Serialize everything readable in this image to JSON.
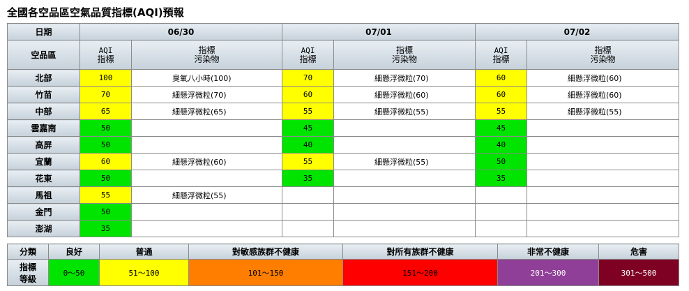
{
  "title": "全國各空品區空氣品質指標(AQI)預報",
  "header": {
    "date_label": "日期",
    "area_label": "空品區",
    "aqi_label_1": "AQI",
    "aqi_label_2": "指標",
    "pol_label_1": "指標",
    "pol_label_2": "污染物",
    "dates": [
      "06/30",
      "07/01",
      "07/02"
    ]
  },
  "rows": [
    {
      "area": "北部",
      "d": [
        {
          "aqi": "100",
          "pol": "臭氧八小時(100)",
          "color": "#ffff00"
        },
        {
          "aqi": "70",
          "pol": "細懸浮微粒(70)",
          "color": "#ffff00"
        },
        {
          "aqi": "60",
          "pol": "細懸浮微粒(60)",
          "color": "#ffff00"
        }
      ]
    },
    {
      "area": "竹苗",
      "d": [
        {
          "aqi": "70",
          "pol": "細懸浮微粒(70)",
          "color": "#ffff00"
        },
        {
          "aqi": "60",
          "pol": "細懸浮微粒(60)",
          "color": "#ffff00"
        },
        {
          "aqi": "60",
          "pol": "細懸浮微粒(60)",
          "color": "#ffff00"
        }
      ]
    },
    {
      "area": "中部",
      "d": [
        {
          "aqi": "65",
          "pol": "細懸浮微粒(65)",
          "color": "#ffff00"
        },
        {
          "aqi": "55",
          "pol": "細懸浮微粒(55)",
          "color": "#ffff00"
        },
        {
          "aqi": "55",
          "pol": "細懸浮微粒(55)",
          "color": "#ffff00"
        }
      ]
    },
    {
      "area": "雲嘉南",
      "d": [
        {
          "aqi": "50",
          "pol": "",
          "color": "#00e400"
        },
        {
          "aqi": "45",
          "pol": "",
          "color": "#00e400"
        },
        {
          "aqi": "45",
          "pol": "",
          "color": "#00e400"
        }
      ]
    },
    {
      "area": "高屏",
      "d": [
        {
          "aqi": "50",
          "pol": "",
          "color": "#00e400"
        },
        {
          "aqi": "40",
          "pol": "",
          "color": "#00e400"
        },
        {
          "aqi": "40",
          "pol": "",
          "color": "#00e400"
        }
      ]
    },
    {
      "area": "宜蘭",
      "d": [
        {
          "aqi": "60",
          "pol": "細懸浮微粒(60)",
          "color": "#ffff00"
        },
        {
          "aqi": "55",
          "pol": "細懸浮微粒(55)",
          "color": "#ffff00"
        },
        {
          "aqi": "50",
          "pol": "",
          "color": "#00e400"
        }
      ]
    },
    {
      "area": "花東",
      "d": [
        {
          "aqi": "50",
          "pol": "",
          "color": "#00e400"
        },
        {
          "aqi": "35",
          "pol": "",
          "color": "#00e400"
        },
        {
          "aqi": "35",
          "pol": "",
          "color": "#00e400"
        }
      ]
    },
    {
      "area": "馬祖",
      "d": [
        {
          "aqi": "55",
          "pol": "細懸浮微粒(55)",
          "color": "#ffff00"
        },
        {
          "aqi": "",
          "pol": "",
          "color": "#ffffff"
        },
        {
          "aqi": "",
          "pol": "",
          "color": "#ffffff"
        }
      ]
    },
    {
      "area": "金門",
      "d": [
        {
          "aqi": "50",
          "pol": "",
          "color": "#00e400"
        },
        {
          "aqi": "",
          "pol": "",
          "color": "#ffffff"
        },
        {
          "aqi": "",
          "pol": "",
          "color": "#ffffff"
        }
      ]
    },
    {
      "area": "澎湖",
      "d": [
        {
          "aqi": "35",
          "pol": "",
          "color": "#00e400"
        },
        {
          "aqi": "",
          "pol": "",
          "color": "#ffffff"
        },
        {
          "aqi": "",
          "pol": "",
          "color": "#ffffff"
        }
      ]
    }
  ],
  "legend": {
    "class_label": "分類",
    "level_label_1": "指標",
    "level_label_2": "等級",
    "items": [
      {
        "name": "良好",
        "range": "0～50",
        "bg": "#00e400",
        "fg": "#000000"
      },
      {
        "name": "普通",
        "range": "51～100",
        "bg": "#ffff00",
        "fg": "#000000"
      },
      {
        "name": "對敏感族群不健康",
        "range": "101～150",
        "bg": "#ff7e00",
        "fg": "#000000"
      },
      {
        "name": "對所有族群不健康",
        "range": "151～200",
        "bg": "#ff0000",
        "fg": "#000000"
      },
      {
        "name": "非常不健康",
        "range": "201～300",
        "bg": "#8f3f97",
        "fg": "#ffffff"
      },
      {
        "name": "危害",
        "range": "301～500",
        "bg": "#7e0023",
        "fg": "#ffffff"
      }
    ]
  }
}
